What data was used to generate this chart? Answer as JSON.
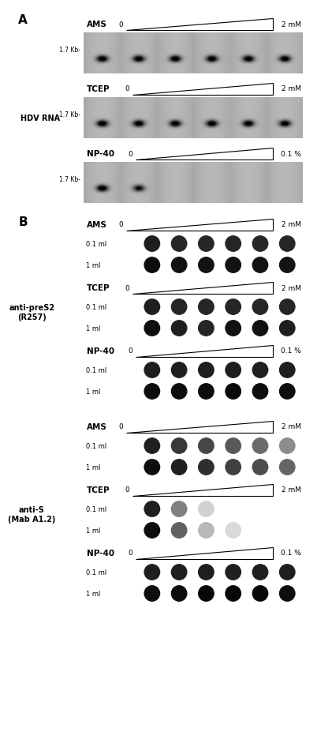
{
  "fig_width": 3.74,
  "fig_height": 9.08,
  "bg_color": "#ffffff",
  "section_A": {
    "gels": [
      {
        "label": "AMS",
        "conc_end": "2 mM",
        "kb_label": "1.7 Kb-",
        "n_lanes": 6,
        "band_intensities": [
          1.0,
          1.0,
          1.0,
          1.0,
          1.0,
          1.0
        ],
        "band_darkness": [
          0.92,
          0.92,
          0.92,
          0.92,
          0.9,
          0.9
        ]
      },
      {
        "label": "TCEP",
        "conc_end": "2 mM",
        "kb_label": "1.7 Kb-",
        "n_lanes": 6,
        "band_intensities": [
          1.0,
          1.0,
          1.0,
          1.0,
          1.0,
          1.0
        ],
        "band_darkness": [
          0.92,
          0.92,
          0.92,
          0.92,
          0.9,
          0.9
        ]
      },
      {
        "label": "NP-40",
        "conc_end": "0.1 %",
        "kb_label": "1.7 Kb-",
        "n_lanes": 6,
        "band_intensities": [
          1.0,
          0.85,
          0.0,
          0.0,
          0.0,
          0.0
        ],
        "band_darkness": [
          0.92,
          0.75,
          0.0,
          0.0,
          0.0,
          0.0
        ]
      }
    ],
    "side_label": "HDV RNA"
  },
  "section_B_preS2": {
    "side_label": "anti-preS2\n(R257)",
    "groups": [
      {
        "label": "AMS",
        "conc_end": "2 mM",
        "rows": [
          {
            "vol": "0.1 ml",
            "dots": [
              0.88,
              0.85,
              0.85,
              0.85,
              0.85,
              0.85
            ]
          },
          {
            "vol": "1 ml",
            "dots": [
              0.95,
              0.93,
              0.93,
              0.93,
              0.93,
              0.92
            ]
          }
        ]
      },
      {
        "label": "TCEP",
        "conc_end": "2 mM",
        "rows": [
          {
            "vol": "0.1 ml",
            "dots": [
              0.88,
              0.85,
              0.85,
              0.85,
              0.85,
              0.85
            ]
          },
          {
            "vol": "1 ml",
            "dots": [
              0.95,
              0.88,
              0.85,
              0.93,
              0.93,
              0.88
            ]
          }
        ]
      },
      {
        "label": "NP-40",
        "conc_end": "0.1 %",
        "rows": [
          {
            "vol": "0.1 ml",
            "dots": [
              0.88,
              0.88,
              0.88,
              0.88,
              0.88,
              0.88
            ]
          },
          {
            "vol": "1 ml",
            "dots": [
              0.95,
              0.95,
              0.95,
              0.97,
              0.95,
              0.95
            ]
          }
        ]
      }
    ]
  },
  "section_B_antiS": {
    "side_label": "anti-S\n(Mab A1.2)",
    "groups": [
      {
        "label": "AMS",
        "conc_end": "2 mM",
        "rows": [
          {
            "vol": "0.1 ml",
            "dots": [
              0.88,
              0.78,
              0.72,
              0.65,
              0.58,
              0.45
            ]
          },
          {
            "vol": "1 ml",
            "dots": [
              0.95,
              0.88,
              0.82,
              0.75,
              0.7,
              0.6
            ]
          }
        ]
      },
      {
        "label": "TCEP",
        "conc_end": "2 mM",
        "rows": [
          {
            "vol": "0.1 ml",
            "dots": [
              0.88,
              0.5,
              0.18,
              0.0,
              0.0,
              0.0
            ]
          },
          {
            "vol": "1 ml",
            "dots": [
              0.95,
              0.62,
              0.28,
              0.15,
              0.0,
              0.0
            ]
          }
        ]
      },
      {
        "label": "NP-40",
        "conc_end": "0.1 %",
        "rows": [
          {
            "vol": "0.1 ml",
            "dots": [
              0.88,
              0.88,
              0.88,
              0.88,
              0.88,
              0.88
            ]
          },
          {
            "vol": "1 ml",
            "dots": [
              0.95,
              0.95,
              0.97,
              0.97,
              0.97,
              0.95
            ]
          }
        ]
      }
    ]
  }
}
